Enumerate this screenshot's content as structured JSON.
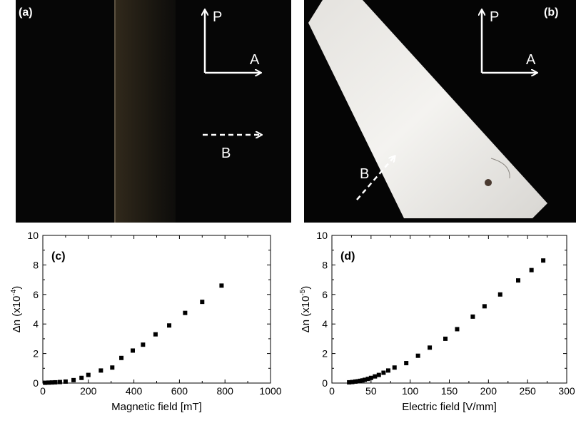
{
  "photo_a": {
    "label": "(a)",
    "polarizer_label": "P",
    "analyzer_label": "A",
    "field_label": "B"
  },
  "photo_b": {
    "label": "(b)",
    "polarizer_label": "P",
    "analyzer_label": "A",
    "field_label": "B"
  },
  "chart_data": [
    {
      "type": "scatter",
      "panel_label": "(c)",
      "xlabel": "Magnetic field [mT]",
      "ylabel": "Δn (x10",
      "ylabel_exp": "-4",
      "ylabel_suffix": ")",
      "xlim": [
        0,
        1000
      ],
      "ylim": [
        0,
        10
      ],
      "xticks": [
        0,
        200,
        400,
        600,
        800,
        1000
      ],
      "yticks": [
        0,
        2,
        4,
        6,
        8,
        10
      ],
      "grid": false,
      "marker_color": "#000000",
      "x": [
        10,
        25,
        40,
        55,
        75,
        100,
        135,
        170,
        200,
        255,
        305,
        345,
        395,
        440,
        495,
        555,
        625,
        700,
        785
      ],
      "y": [
        0.02,
        0.03,
        0.04,
        0.05,
        0.07,
        0.1,
        0.2,
        0.35,
        0.55,
        0.85,
        1.05,
        1.7,
        2.2,
        2.6,
        3.3,
        3.9,
        4.75,
        5.5,
        6.6
      ]
    },
    {
      "type": "scatter",
      "panel_label": "(d)",
      "xlabel": "Electric field [V/mm]",
      "ylabel": "Δn (x10",
      "ylabel_exp": "-5",
      "ylabel_suffix": ")",
      "xlim": [
        0,
        300
      ],
      "ylim": [
        0,
        10
      ],
      "xticks": [
        0,
        50,
        100,
        150,
        200,
        250,
        300
      ],
      "yticks": [
        0,
        2,
        4,
        6,
        8,
        10
      ],
      "grid": false,
      "marker_color": "#000000",
      "x": [
        22,
        26,
        30,
        33,
        36,
        39,
        42,
        46,
        50,
        55,
        60,
        66,
        72,
        80,
        95,
        110,
        125,
        145,
        160,
        180,
        195,
        215,
        238,
        255,
        270
      ],
      "y": [
        0.05,
        0.07,
        0.1,
        0.12,
        0.15,
        0.18,
        0.22,
        0.28,
        0.35,
        0.45,
        0.55,
        0.7,
        0.85,
        1.05,
        1.35,
        1.85,
        2.4,
        3.0,
        3.65,
        4.5,
        5.2,
        6.0,
        6.95,
        7.65,
        8.3
      ]
    }
  ]
}
